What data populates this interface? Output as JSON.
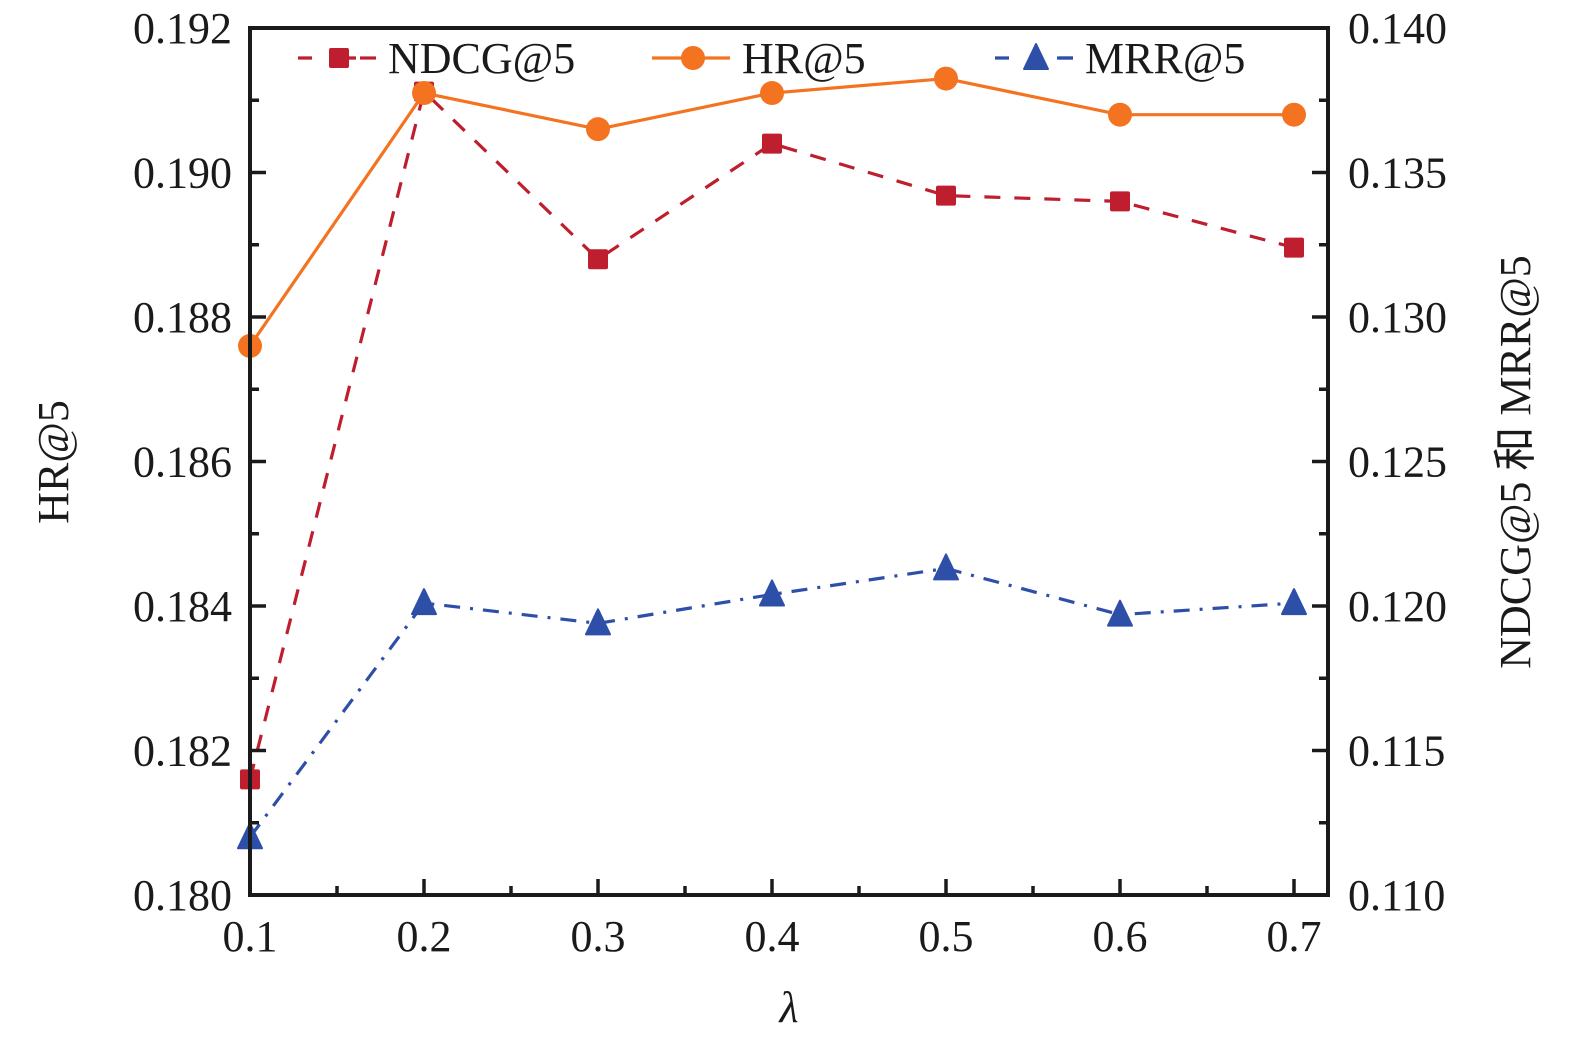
{
  "chart_data": {
    "type": "line",
    "title": "",
    "xlabel": "λ",
    "ylabel_left": "HR@5",
    "ylabel_right": "NDCG@5 和 MRR@5",
    "x": [
      0.1,
      0.2,
      0.3,
      0.4,
      0.5,
      0.6,
      0.7
    ],
    "x_tick_labels": [
      "0.1",
      "0.2",
      "0.3",
      "0.4",
      "0.5",
      "0.6",
      "0.7"
    ],
    "xlim": [
      0.1,
      0.72
    ],
    "ylim_left": [
      0.18,
      0.192
    ],
    "ylim_right": [
      0.11,
      0.14
    ],
    "y_left_tick_labels": [
      "0.180",
      "0.182",
      "0.184",
      "0.186",
      "0.188",
      "0.190",
      "0.192"
    ],
    "y_left_ticks": [
      0.18,
      0.182,
      0.184,
      0.186,
      0.188,
      0.19,
      0.192
    ],
    "y_right_tick_labels": [
      "0.110",
      "0.115",
      "0.120",
      "0.125",
      "0.130",
      "0.135",
      "0.140"
    ],
    "y_right_ticks": [
      0.11,
      0.115,
      0.12,
      0.125,
      0.13,
      0.135,
      0.14
    ],
    "grid": false,
    "legend_position": "top",
    "series": [
      {
        "name": "NDCG@5",
        "axis": "right",
        "color": "#be1e2d",
        "line_style": "dashed",
        "marker": "square",
        "values": [
          0.114,
          0.1378,
          0.132,
          0.136,
          0.1342,
          0.134,
          0.1324
        ]
      },
      {
        "name": "HR@5",
        "axis": "left",
        "color": "#f47321",
        "line_style": "solid",
        "marker": "circle",
        "values": [
          0.1876,
          0.1911,
          0.1906,
          0.1911,
          0.1913,
          0.1908,
          0.1908
        ]
      },
      {
        "name": "MRR@5",
        "axis": "right",
        "color": "#2e4fa8",
        "line_style": "dash-dot",
        "marker": "triangle",
        "values": [
          0.112,
          0.1201,
          0.1194,
          0.1204,
          0.1213,
          0.1197,
          0.1201
        ]
      }
    ]
  }
}
